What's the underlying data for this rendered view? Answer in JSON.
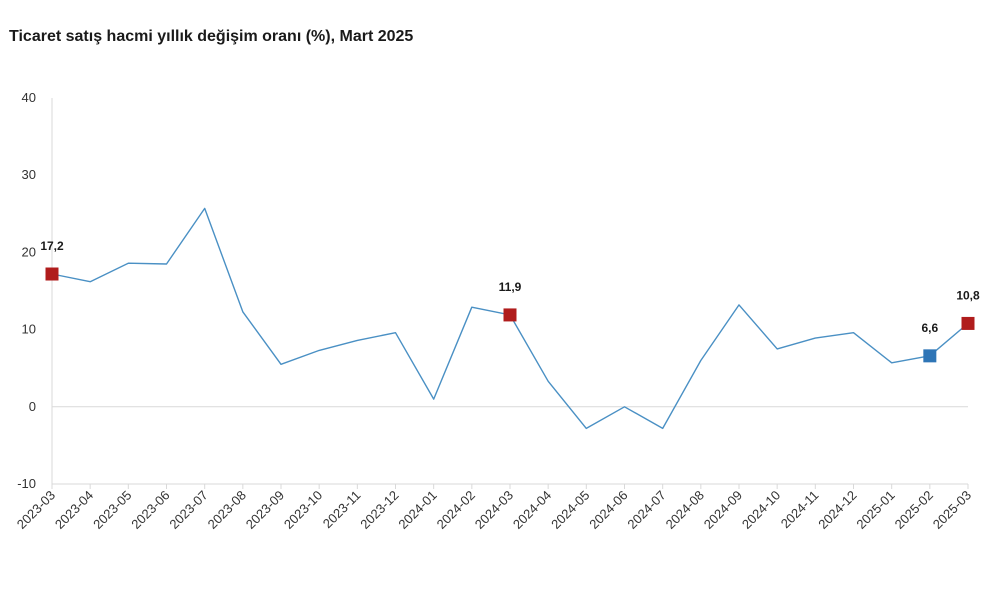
{
  "chart_data": {
    "type": "line",
    "title": "Ticaret satış hacmi yıllık değişim oranı (%), Mart 2025",
    "xlabel": "",
    "ylabel": "",
    "ylim": [
      -10,
      40
    ],
    "yticks": [
      -10,
      0,
      10,
      20,
      30,
      40
    ],
    "grid": false,
    "categories": [
      "2023-03",
      "2023-04",
      "2023-05",
      "2023-06",
      "2023-07",
      "2023-08",
      "2023-09",
      "2023-10",
      "2023-11",
      "2023-12",
      "2024-01",
      "2024-02",
      "2024-03",
      "2024-04",
      "2024-05",
      "2024-06",
      "2024-07",
      "2024-08",
      "2024-09",
      "2024-10",
      "2024-11",
      "2024-12",
      "2025-01",
      "2025-02",
      "2025-03"
    ],
    "series": [
      {
        "values": [
          17.2,
          16.2,
          18.6,
          18.5,
          25.7,
          12.3,
          5.5,
          7.3,
          8.6,
          9.6,
          1.0,
          12.9,
          11.9,
          3.3,
          -2.8,
          0.0,
          -2.8,
          6.0,
          13.2,
          7.5,
          8.9,
          9.6,
          5.7,
          6.6,
          10.8
        ],
        "color": "#4a90c4"
      }
    ],
    "annotations": [
      {
        "category": "2023-03",
        "value": 17.2,
        "label": "17,2",
        "color": "#b01c1c"
      },
      {
        "category": "2024-03",
        "value": 11.9,
        "label": "11,9",
        "color": "#b01c1c"
      },
      {
        "category": "2025-02",
        "value": 6.6,
        "label": "6,6",
        "color": "#2e75b6"
      },
      {
        "category": "2025-03",
        "value": 10.8,
        "label": "10,8",
        "color": "#b01c1c"
      }
    ]
  }
}
